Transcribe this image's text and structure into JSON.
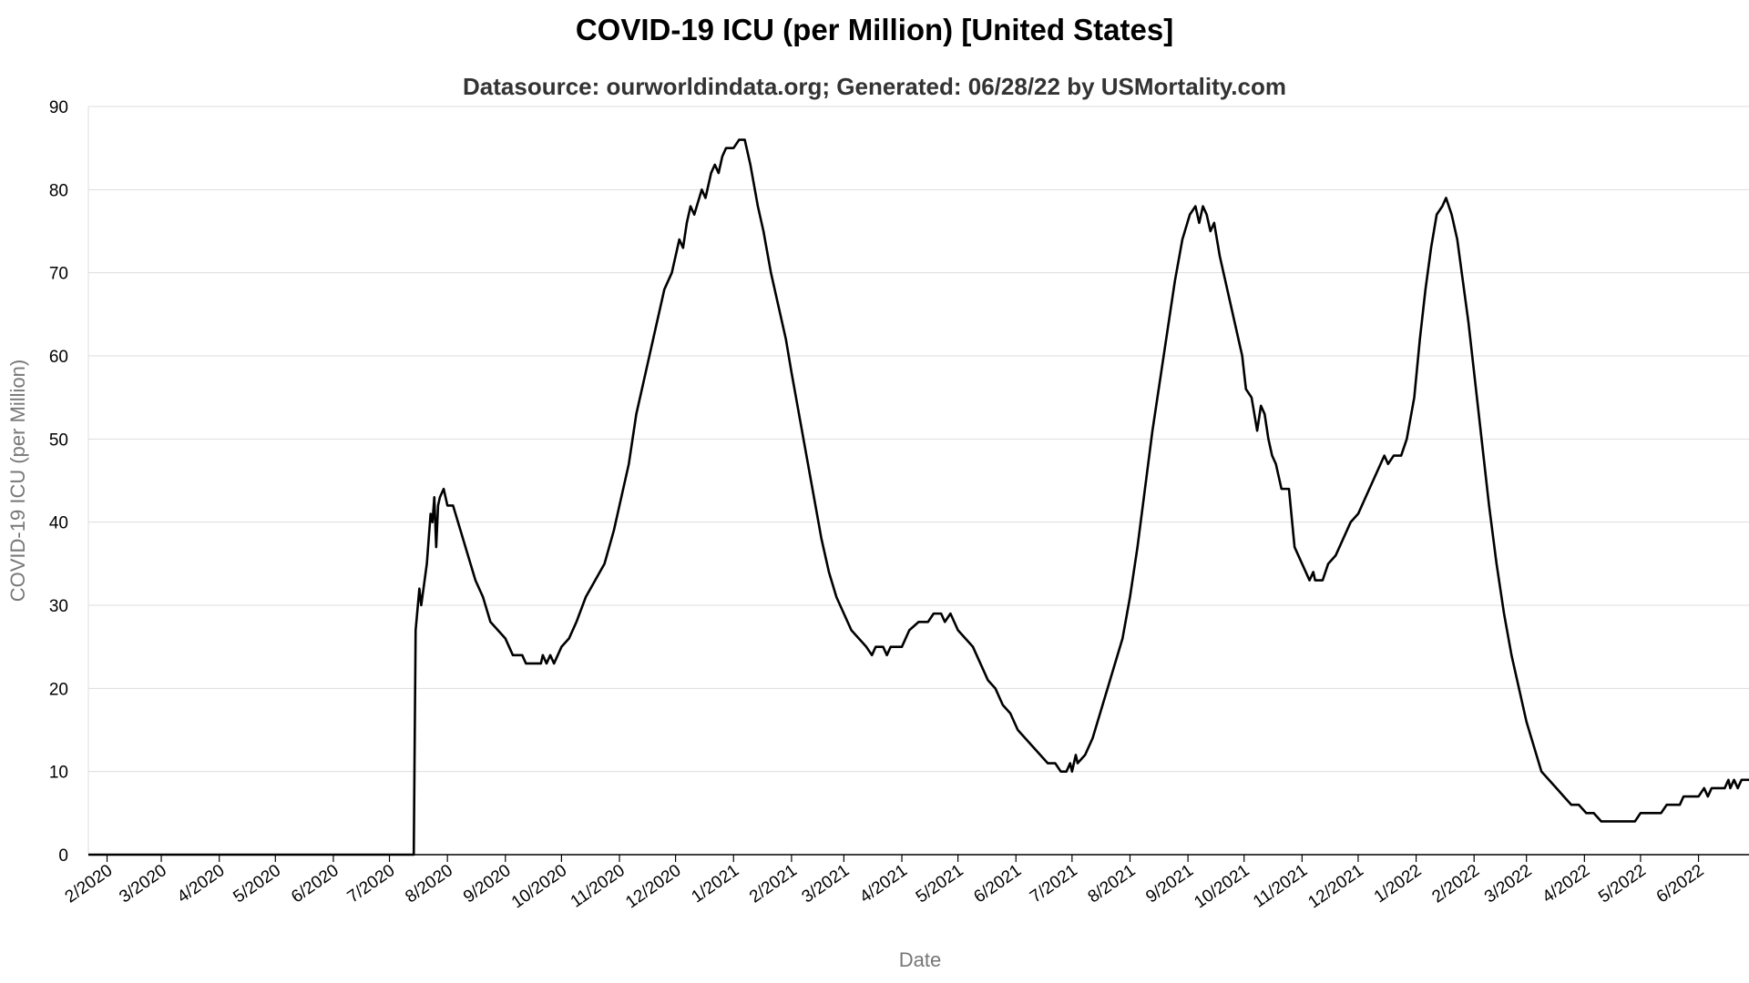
{
  "title": "COVID-19 ICU (per Million) [United States]",
  "subtitle": "Datasource: ourworldindata.org; Generated: 06/28/22 by USMortality.com",
  "chart_data": {
    "type": "line",
    "title": "COVID-19 ICU (per Million) [United States]",
    "subtitle": "Datasource: ourworldindata.org; Generated: 06/28/22 by USMortality.com",
    "xlabel": "Date",
    "ylabel": "COVID-19 ICU (per Million)",
    "xlim": [
      "2020-01-22",
      "2022-06-28"
    ],
    "ylim": [
      0,
      90
    ],
    "yticks": [
      0,
      10,
      20,
      30,
      40,
      50,
      60,
      70,
      80,
      90
    ],
    "xticks": [
      {
        "date": "2020-02-01",
        "label": "2/2020"
      },
      {
        "date": "2020-03-01",
        "label": "3/2020"
      },
      {
        "date": "2020-04-01",
        "label": "4/2020"
      },
      {
        "date": "2020-05-01",
        "label": "5/2020"
      },
      {
        "date": "2020-06-01",
        "label": "6/2020"
      },
      {
        "date": "2020-07-01",
        "label": "7/2020"
      },
      {
        "date": "2020-08-01",
        "label": "8/2020"
      },
      {
        "date": "2020-09-01",
        "label": "9/2020"
      },
      {
        "date": "2020-10-01",
        "label": "10/2020"
      },
      {
        "date": "2020-11-01",
        "label": "11/2020"
      },
      {
        "date": "2020-12-01",
        "label": "12/2020"
      },
      {
        "date": "2021-01-01",
        "label": "1/2021"
      },
      {
        "date": "2021-02-01",
        "label": "2/2021"
      },
      {
        "date": "2021-03-01",
        "label": "3/2021"
      },
      {
        "date": "2021-04-01",
        "label": "4/2021"
      },
      {
        "date": "2021-05-01",
        "label": "5/2021"
      },
      {
        "date": "2021-06-01",
        "label": "6/2021"
      },
      {
        "date": "2021-07-01",
        "label": "7/2021"
      },
      {
        "date": "2021-08-01",
        "label": "8/2021"
      },
      {
        "date": "2021-09-01",
        "label": "9/2021"
      },
      {
        "date": "2021-10-01",
        "label": "10/2021"
      },
      {
        "date": "2021-11-01",
        "label": "11/2021"
      },
      {
        "date": "2021-12-01",
        "label": "12/2021"
      },
      {
        "date": "2022-01-01",
        "label": "1/2022"
      },
      {
        "date": "2022-02-01",
        "label": "2/2022"
      },
      {
        "date": "2022-03-01",
        "label": "3/2022"
      },
      {
        "date": "2022-04-01",
        "label": "4/2022"
      },
      {
        "date": "2022-05-01",
        "label": "5/2022"
      },
      {
        "date": "2022-06-01",
        "label": "6/2022"
      }
    ],
    "grid": true,
    "legend": "none",
    "line_color": "#000000",
    "series": [
      {
        "points": [
          [
            "2020-01-22",
            0
          ],
          [
            "2020-07-14",
            0
          ],
          [
            "2020-07-15",
            27
          ],
          [
            "2020-07-17",
            32
          ],
          [
            "2020-07-18",
            30
          ],
          [
            "2020-07-21",
            35
          ],
          [
            "2020-07-23",
            41
          ],
          [
            "2020-07-24",
            40
          ],
          [
            "2020-07-25",
            43
          ],
          [
            "2020-07-26",
            37
          ],
          [
            "2020-07-27",
            42
          ],
          [
            "2020-07-28",
            43
          ],
          [
            "2020-07-30",
            44
          ],
          [
            "2020-08-01",
            42
          ],
          [
            "2020-08-04",
            42
          ],
          [
            "2020-08-08",
            39
          ],
          [
            "2020-08-12",
            36
          ],
          [
            "2020-08-16",
            33
          ],
          [
            "2020-08-20",
            31
          ],
          [
            "2020-08-24",
            28
          ],
          [
            "2020-08-28",
            27
          ],
          [
            "2020-09-01",
            26
          ],
          [
            "2020-09-05",
            24
          ],
          [
            "2020-09-10",
            24
          ],
          [
            "2020-09-12",
            23
          ],
          [
            "2020-09-20",
            23
          ],
          [
            "2020-09-21",
            24
          ],
          [
            "2020-09-23",
            23
          ],
          [
            "2020-09-25",
            24
          ],
          [
            "2020-09-27",
            23
          ],
          [
            "2020-10-01",
            25
          ],
          [
            "2020-10-05",
            26
          ],
          [
            "2020-10-09",
            28
          ],
          [
            "2020-10-14",
            31
          ],
          [
            "2020-10-19",
            33
          ],
          [
            "2020-10-24",
            35
          ],
          [
            "2020-10-29",
            39
          ],
          [
            "2020-11-02",
            43
          ],
          [
            "2020-11-06",
            47
          ],
          [
            "2020-11-10",
            53
          ],
          [
            "2020-11-13",
            56
          ],
          [
            "2020-11-17",
            60
          ],
          [
            "2020-11-21",
            64
          ],
          [
            "2020-11-25",
            68
          ],
          [
            "2020-11-29",
            70
          ],
          [
            "2020-12-03",
            74
          ],
          [
            "2020-12-05",
            73
          ],
          [
            "2020-12-07",
            76
          ],
          [
            "2020-12-09",
            78
          ],
          [
            "2020-12-11",
            77
          ],
          [
            "2020-12-15",
            80
          ],
          [
            "2020-12-17",
            79
          ],
          [
            "2020-12-20",
            82
          ],
          [
            "2020-12-22",
            83
          ],
          [
            "2020-12-24",
            82
          ],
          [
            "2020-12-26",
            84
          ],
          [
            "2020-12-28",
            85
          ],
          [
            "2021-01-01",
            85
          ],
          [
            "2021-01-04",
            86
          ],
          [
            "2021-01-07",
            86
          ],
          [
            "2021-01-10",
            83
          ],
          [
            "2021-01-14",
            78
          ],
          [
            "2021-01-17",
            75
          ],
          [
            "2021-01-21",
            70
          ],
          [
            "2021-01-25",
            66
          ],
          [
            "2021-01-29",
            62
          ],
          [
            "2021-02-01",
            58
          ],
          [
            "2021-02-05",
            53
          ],
          [
            "2021-02-09",
            48
          ],
          [
            "2021-02-13",
            43
          ],
          [
            "2021-02-17",
            38
          ],
          [
            "2021-02-21",
            34
          ],
          [
            "2021-02-25",
            31
          ],
          [
            "2021-03-01",
            29
          ],
          [
            "2021-03-05",
            27
          ],
          [
            "2021-03-09",
            26
          ],
          [
            "2021-03-13",
            25
          ],
          [
            "2021-03-16",
            24
          ],
          [
            "2021-03-18",
            25
          ],
          [
            "2021-03-22",
            25
          ],
          [
            "2021-03-24",
            24
          ],
          [
            "2021-03-26",
            25
          ],
          [
            "2021-04-01",
            25
          ],
          [
            "2021-04-05",
            27
          ],
          [
            "2021-04-10",
            28
          ],
          [
            "2021-04-15",
            28
          ],
          [
            "2021-04-18",
            29
          ],
          [
            "2021-04-22",
            29
          ],
          [
            "2021-04-24",
            28
          ],
          [
            "2021-04-27",
            29
          ],
          [
            "2021-05-01",
            27
          ],
          [
            "2021-05-05",
            26
          ],
          [
            "2021-05-09",
            25
          ],
          [
            "2021-05-13",
            23
          ],
          [
            "2021-05-17",
            21
          ],
          [
            "2021-05-21",
            20
          ],
          [
            "2021-05-25",
            18
          ],
          [
            "2021-05-29",
            17
          ],
          [
            "2021-06-02",
            15
          ],
          [
            "2021-06-06",
            14
          ],
          [
            "2021-06-10",
            13
          ],
          [
            "2021-06-14",
            12
          ],
          [
            "2021-06-18",
            11
          ],
          [
            "2021-06-22",
            11
          ],
          [
            "2021-06-25",
            10
          ],
          [
            "2021-06-28",
            10
          ],
          [
            "2021-06-30",
            11
          ],
          [
            "2021-07-01",
            10
          ],
          [
            "2021-07-03",
            12
          ],
          [
            "2021-07-04",
            11
          ],
          [
            "2021-07-08",
            12
          ],
          [
            "2021-07-12",
            14
          ],
          [
            "2021-07-16",
            17
          ],
          [
            "2021-07-20",
            20
          ],
          [
            "2021-07-24",
            23
          ],
          [
            "2021-07-28",
            26
          ],
          [
            "2021-08-01",
            31
          ],
          [
            "2021-08-05",
            37
          ],
          [
            "2021-08-09",
            44
          ],
          [
            "2021-08-13",
            51
          ],
          [
            "2021-08-17",
            57
          ],
          [
            "2021-08-21",
            63
          ],
          [
            "2021-08-25",
            69
          ],
          [
            "2021-08-29",
            74
          ],
          [
            "2021-09-02",
            77
          ],
          [
            "2021-09-05",
            78
          ],
          [
            "2021-09-07",
            76
          ],
          [
            "2021-09-09",
            78
          ],
          [
            "2021-09-11",
            77
          ],
          [
            "2021-09-13",
            75
          ],
          [
            "2021-09-15",
            76
          ],
          [
            "2021-09-18",
            72
          ],
          [
            "2021-09-22",
            68
          ],
          [
            "2021-09-26",
            64
          ],
          [
            "2021-09-30",
            60
          ],
          [
            "2021-10-02",
            56
          ],
          [
            "2021-10-05",
            55
          ],
          [
            "2021-10-08",
            51
          ],
          [
            "2021-10-10",
            54
          ],
          [
            "2021-10-12",
            53
          ],
          [
            "2021-10-14",
            50
          ],
          [
            "2021-10-16",
            48
          ],
          [
            "2021-10-18",
            47
          ],
          [
            "2021-10-21",
            44
          ],
          [
            "2021-10-25",
            44
          ],
          [
            "2021-10-28",
            37
          ],
          [
            "2021-11-01",
            35
          ],
          [
            "2021-11-05",
            33
          ],
          [
            "2021-11-07",
            34
          ],
          [
            "2021-11-08",
            33
          ],
          [
            "2021-11-12",
            33
          ],
          [
            "2021-11-15",
            35
          ],
          [
            "2021-11-19",
            36
          ],
          [
            "2021-11-23",
            38
          ],
          [
            "2021-11-27",
            40
          ],
          [
            "2021-12-01",
            41
          ],
          [
            "2021-12-05",
            43
          ],
          [
            "2021-12-09",
            45
          ],
          [
            "2021-12-13",
            47
          ],
          [
            "2021-12-15",
            48
          ],
          [
            "2021-12-17",
            47
          ],
          [
            "2021-12-20",
            48
          ],
          [
            "2021-12-24",
            48
          ],
          [
            "2021-12-27",
            50
          ],
          [
            "2021-12-31",
            55
          ],
          [
            "2022-01-03",
            62
          ],
          [
            "2022-01-06",
            68
          ],
          [
            "2022-01-09",
            73
          ],
          [
            "2022-01-12",
            77
          ],
          [
            "2022-01-15",
            78
          ],
          [
            "2022-01-17",
            79
          ],
          [
            "2022-01-20",
            77
          ],
          [
            "2022-01-23",
            74
          ],
          [
            "2022-01-26",
            69
          ],
          [
            "2022-01-29",
            64
          ],
          [
            "2022-02-01",
            58
          ],
          [
            "2022-02-05",
            50
          ],
          [
            "2022-02-09",
            42
          ],
          [
            "2022-02-13",
            35
          ],
          [
            "2022-02-17",
            29
          ],
          [
            "2022-02-21",
            24
          ],
          [
            "2022-02-25",
            20
          ],
          [
            "2022-03-01",
            16
          ],
          [
            "2022-03-05",
            13
          ],
          [
            "2022-03-09",
            10
          ],
          [
            "2022-03-13",
            9
          ],
          [
            "2022-03-17",
            8
          ],
          [
            "2022-03-21",
            7
          ],
          [
            "2022-03-25",
            6
          ],
          [
            "2022-03-29",
            6
          ],
          [
            "2022-04-02",
            5
          ],
          [
            "2022-04-06",
            5
          ],
          [
            "2022-04-10",
            4
          ],
          [
            "2022-04-28",
            4
          ],
          [
            "2022-05-01",
            5
          ],
          [
            "2022-05-12",
            5
          ],
          [
            "2022-05-15",
            6
          ],
          [
            "2022-05-22",
            6
          ],
          [
            "2022-05-24",
            7
          ],
          [
            "2022-06-01",
            7
          ],
          [
            "2022-06-04",
            8
          ],
          [
            "2022-06-06",
            7
          ],
          [
            "2022-06-08",
            8
          ],
          [
            "2022-06-15",
            8
          ],
          [
            "2022-06-17",
            9
          ],
          [
            "2022-06-18",
            8
          ],
          [
            "2022-06-20",
            9
          ],
          [
            "2022-06-22",
            8
          ],
          [
            "2022-06-24",
            9
          ],
          [
            "2022-06-28",
            9
          ]
        ]
      }
    ]
  }
}
